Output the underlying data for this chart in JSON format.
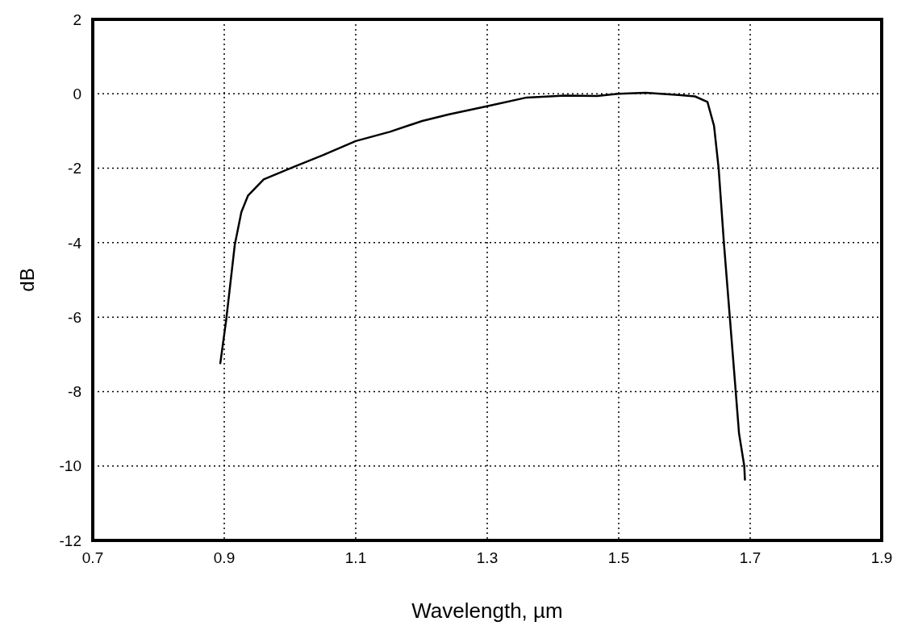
{
  "chart_data": {
    "type": "line",
    "xlabel": "Wavelength, µm",
    "ylabel": "dB",
    "xlim": [
      0.7,
      1.9
    ],
    "xticks": [
      0.7,
      0.9,
      1.1,
      1.3,
      1.5,
      1.7,
      1.9
    ],
    "ylim": [
      -12,
      2
    ],
    "yticks": [
      -12,
      -10,
      -8,
      -6,
      -4,
      -2,
      0,
      2
    ],
    "grid": true,
    "line_style": "solid",
    "marker": "none",
    "series": [
      {
        "color": "#000000",
        "x": [
          0.894,
          0.903,
          0.916,
          0.926,
          0.936,
          0.96,
          1.005,
          1.05,
          1.1,
          1.152,
          1.201,
          1.242,
          1.298,
          1.36,
          1.418,
          1.467,
          1.5,
          1.541,
          1.591,
          1.616,
          1.635,
          1.645,
          1.652,
          1.66,
          1.669,
          1.678,
          1.683,
          1.691,
          1.692
        ],
        "values": [
          -7.24,
          -6.07,
          -4.06,
          -3.18,
          -2.74,
          -2.3,
          -1.97,
          -1.65,
          -1.27,
          -1.02,
          -0.73,
          -0.55,
          -0.34,
          -0.1,
          -0.05,
          -0.06,
          0,
          0.03,
          -0.03,
          -0.07,
          -0.22,
          -0.86,
          -2,
          -4,
          -6,
          -8,
          -9.12,
          -10,
          -10.37
        ]
      }
    ]
  }
}
